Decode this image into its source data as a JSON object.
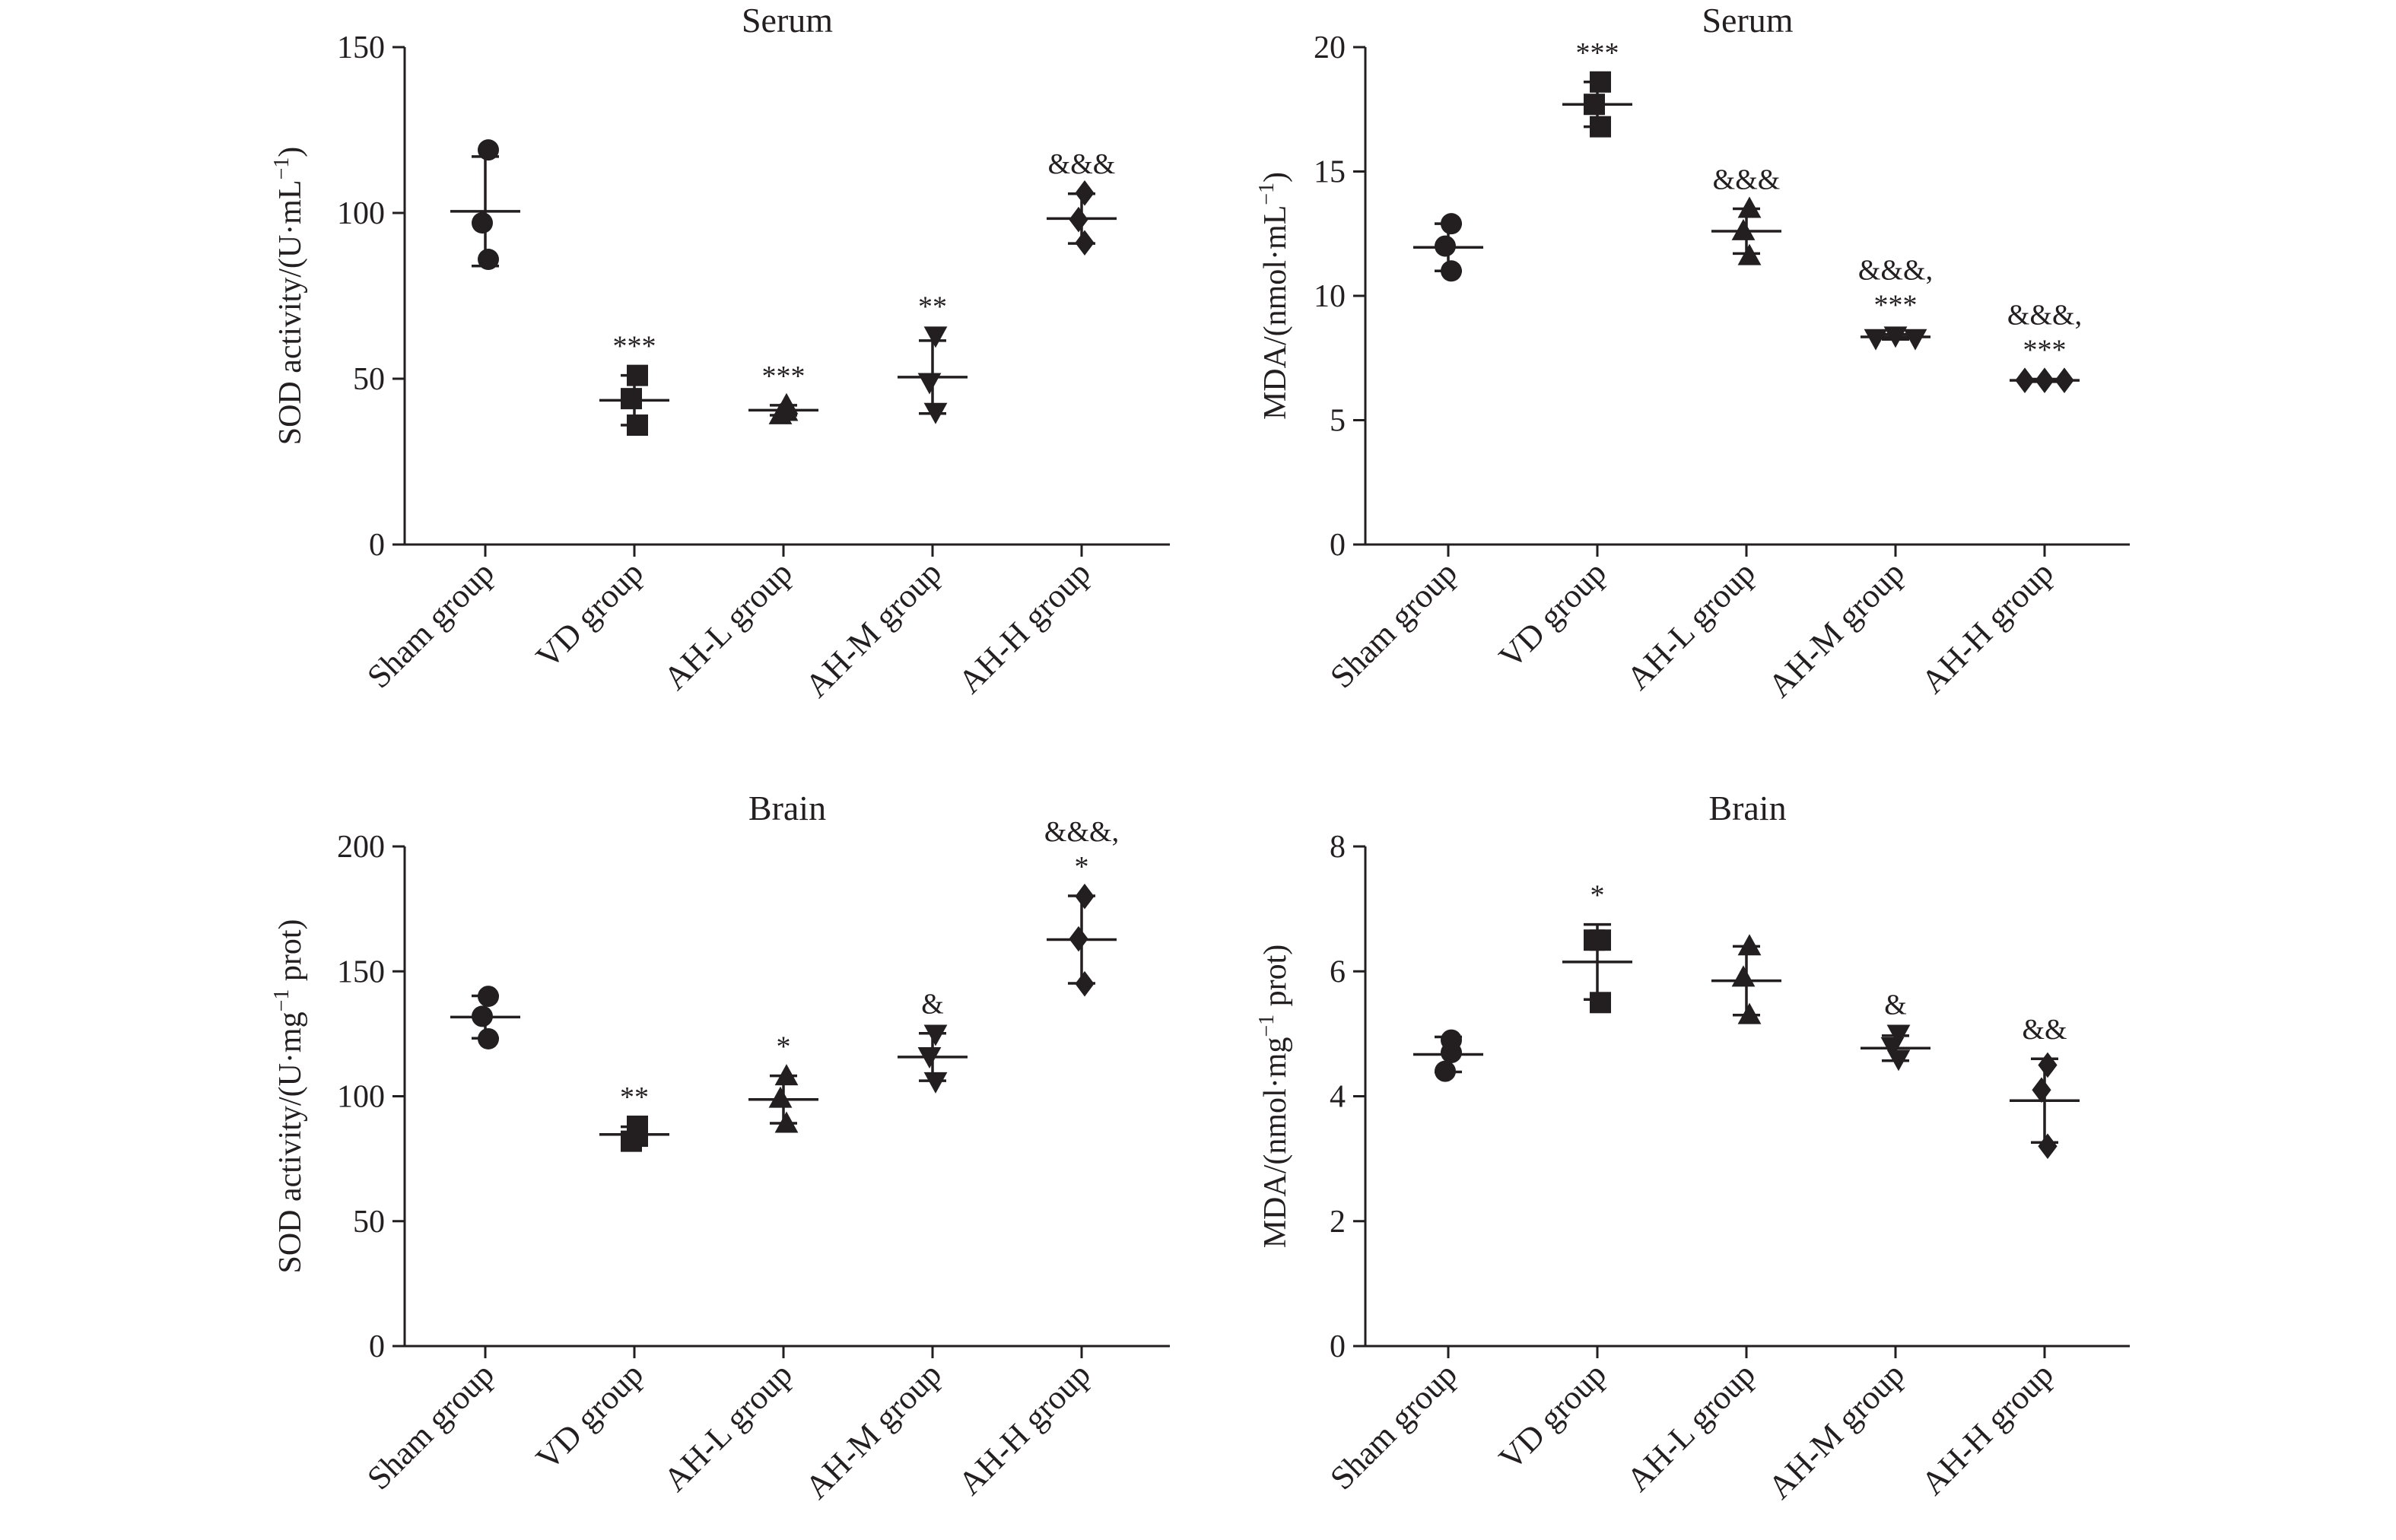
{
  "chart_data": [
    {
      "type": "scatter",
      "title": "Serum",
      "ylabel": "SOD activity/(U·mL",
      "ylabel_sup": "−1",
      "ylabel_tail": ")",
      "ylim": [
        0,
        150
      ],
      "yticks": [
        0,
        50,
        100,
        150
      ],
      "categories": [
        "Sham group",
        "VD group",
        "AH-L group",
        "AH-M group",
        "AH-H group"
      ],
      "markers": [
        "circle",
        "square",
        "triangle-up",
        "triangle-down",
        "diamond"
      ],
      "points": [
        [
          119,
          97,
          86
        ],
        [
          51,
          44,
          36
        ],
        [
          42,
          39,
          40
        ],
        [
          63,
          49,
          40
        ],
        [
          106,
          98,
          91
        ]
      ],
      "mean": [
        100.5,
        43.5,
        40.5,
        50.5,
        98.3
      ],
      "sd": [
        16.5,
        7.5,
        1.5,
        11,
        7.5
      ],
      "annotations": [
        [
          ""
        ],
        [
          "***"
        ],
        [
          "***"
        ],
        [
          "**"
        ],
        [
          "&&&"
        ]
      ],
      "grid": false
    },
    {
      "type": "scatter",
      "title": "Serum",
      "ylabel": "MDA/(nmol·mL",
      "ylabel_sup": "−1",
      "ylabel_tail": ")",
      "ylim": [
        0,
        20
      ],
      "yticks": [
        0,
        5,
        10,
        15,
        20
      ],
      "categories": [
        "Sham group",
        "VD group",
        "AH-L group",
        "AH-M group",
        "AH-H group"
      ],
      "markers": [
        "circle",
        "square",
        "triangle-up",
        "triangle-down",
        "diamond"
      ],
      "points": [
        [
          12.9,
          12,
          11
        ],
        [
          18.6,
          17.7,
          16.8
        ],
        [
          13.5,
          12.6,
          11.6
        ],
        [
          8.3,
          8.4,
          8.3
        ],
        [
          6.6,
          6.6,
          6.6
        ]
      ],
      "mean": [
        11.95,
        17.7,
        12.6,
        8.35,
        6.6
      ],
      "sd": [
        0.95,
        0.9,
        0.9,
        0.1,
        0.05
      ],
      "annotations": [
        [
          ""
        ],
        [
          "***"
        ],
        [
          "&&&"
        ],
        [
          "&&&,",
          "***"
        ],
        [
          "&&&,",
          "***"
        ]
      ],
      "grid": false
    },
    {
      "type": "scatter",
      "title": "Brain",
      "ylabel": "SOD activity/(U·mg",
      "ylabel_sup": "−1",
      "ylabel_tail": " prot)",
      "ylim": [
        0,
        200
      ],
      "yticks": [
        0,
        50,
        100,
        150,
        200
      ],
      "categories": [
        "Sham group",
        "VD group",
        "AH-L group",
        "AH-M group",
        "AH-H group"
      ],
      "markers": [
        "circle",
        "square",
        "triangle-up",
        "triangle-down",
        "diamond"
      ],
      "points": [
        [
          140,
          132,
          123
        ],
        [
          88,
          82,
          84
        ],
        [
          108,
          99,
          89
        ],
        [
          125,
          116,
          106
        ],
        [
          180,
          163,
          145
        ]
      ],
      "mean": [
        131.7,
        84.7,
        98.7,
        115.7,
        162.7
      ],
      "sd": [
        8.5,
        3.1,
        9.5,
        9.5,
        17.5
      ],
      "annotations": [
        [
          ""
        ],
        [
          "**"
        ],
        [
          "*"
        ],
        [
          "&"
        ],
        [
          "&&&,",
          "*"
        ]
      ],
      "grid": false
    },
    {
      "type": "scatter",
      "title": "Brain",
      "ylabel": "MDA/(nmol·mg",
      "ylabel_sup": "−1",
      "ylabel_tail": " prot)",
      "ylim": [
        0,
        8
      ],
      "yticks": [
        0,
        2,
        4,
        6,
        8
      ],
      "categories": [
        "Sham group",
        "VD group",
        "AH-L group",
        "AH-M group",
        "AH-H group"
      ],
      "markers": [
        "circle",
        "square",
        "triangle-up",
        "triangle-down",
        "diamond"
      ],
      "points": [
        [
          4.9,
          4.4,
          4.7
        ],
        [
          6.5,
          6.5,
          5.5
        ],
        [
          6.4,
          5.9,
          5.3
        ],
        [
          5.0,
          4.8,
          4.6
        ],
        [
          4.5,
          4.1,
          3.2
        ]
      ],
      "mean": [
        4.67,
        6.15,
        5.85,
        4.77,
        3.93
      ],
      "sd": [
        0.28,
        0.6,
        0.55,
        0.2,
        0.67
      ],
      "annotations": [
        [
          ""
        ],
        [
          "*"
        ],
        [
          ""
        ],
        [
          "&"
        ],
        [
          "&&"
        ]
      ],
      "grid": false
    }
  ],
  "colors": {
    "ink": "#231f20",
    "background": "#ffffff"
  }
}
